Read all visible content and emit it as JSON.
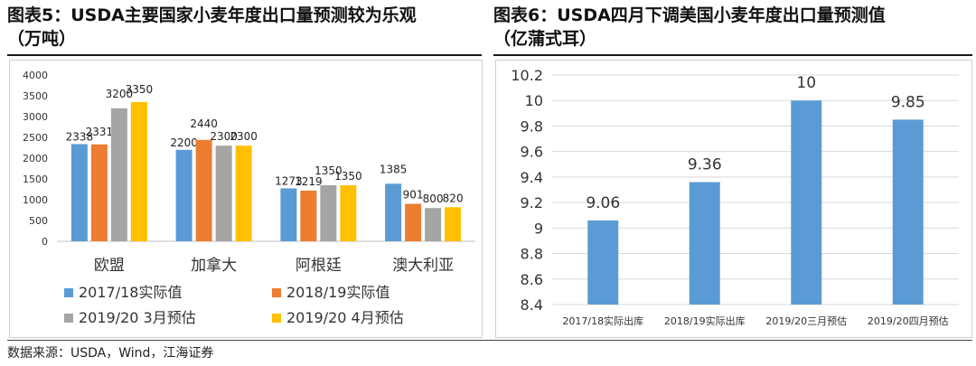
{
  "left_title_line1": "图表5：USDA主要国家小麦年度出口量预测较为乐观",
  "left_title_line2": "（万吨）",
  "right_title_line1": "图表6：USDA四月下调美国小麦年度出口量预测值",
  "right_title_line2": "（亿蒲式耳）",
  "source": "数据来源：USDA，Wind，江海证券",
  "chart_data": [
    {
      "type": "bar",
      "title": "",
      "categories": [
        "欧盟",
        "加拿大",
        "阿根廷",
        "澳大利亚"
      ],
      "series": [
        {
          "name": "2017/18实际值",
          "color": "#5b9bd5",
          "values": [
            2338,
            2200,
            1273,
            1385
          ]
        },
        {
          "name": "2018/19实际值",
          "color": "#ed7d31",
          "values": [
            2331,
            2440,
            1219,
            901
          ]
        },
        {
          "name": "2019/20 3月预估",
          "color": "#a5a5a5",
          "values": [
            3200,
            2300,
            1350,
            800
          ]
        },
        {
          "name": "2019/20 4月预估",
          "color": "#ffc000",
          "values": [
            3350,
            2300,
            1350,
            820
          ]
        }
      ],
      "ylim": [
        0,
        4000
      ],
      "yticks": [
        0,
        500,
        1000,
        1500,
        2000,
        2500,
        3000,
        3500,
        4000
      ],
      "xlabel": "",
      "ylabel": "",
      "grid": false,
      "legend": "bottom"
    },
    {
      "type": "bar",
      "title": "",
      "categories": [
        "2017/18实际出库",
        "2018/19实际出库",
        "2019/20三月预估",
        "2019/20四月预估"
      ],
      "series": [
        {
          "color": "#5b9bd5",
          "values": [
            9.06,
            9.36,
            10,
            9.85
          ],
          "labels": [
            "9.06",
            "9.36",
            "10",
            "9.85"
          ]
        }
      ],
      "ylim": [
        8.4,
        10.2
      ],
      "yticks": [
        "8.4",
        "8.6",
        "8.8",
        "9",
        "9.2",
        "9.4",
        "9.6",
        "9.8",
        "10",
        "10.2"
      ],
      "xlabel": "",
      "ylabel": "",
      "grid": true,
      "legend": "none"
    }
  ]
}
